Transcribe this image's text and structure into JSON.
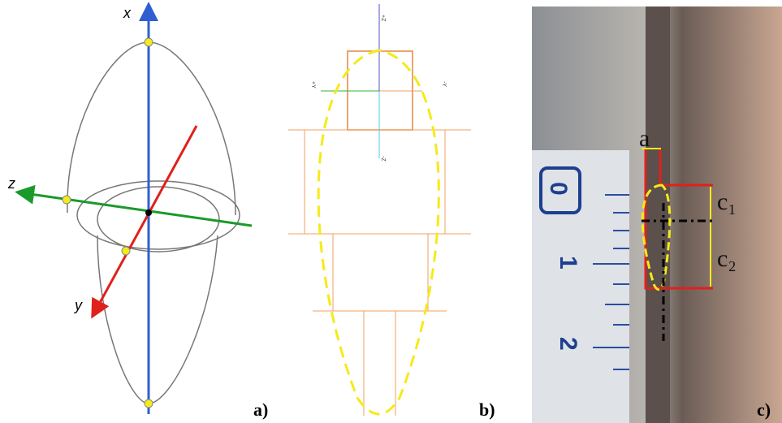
{
  "panels": [
    {
      "label": "a)",
      "axis_labels": [
        "x",
        "z",
        "y"
      ]
    },
    {
      "label": "b)",
      "axis_labels": [
        "+Z",
        "+Y",
        "-Y",
        "-Z"
      ]
    },
    {
      "label": "c)",
      "dimension_labels": [
        "a",
        "c₁",
        "c₂"
      ],
      "ruler_labels": [
        "0",
        "1",
        "2"
      ]
    }
  ]
}
